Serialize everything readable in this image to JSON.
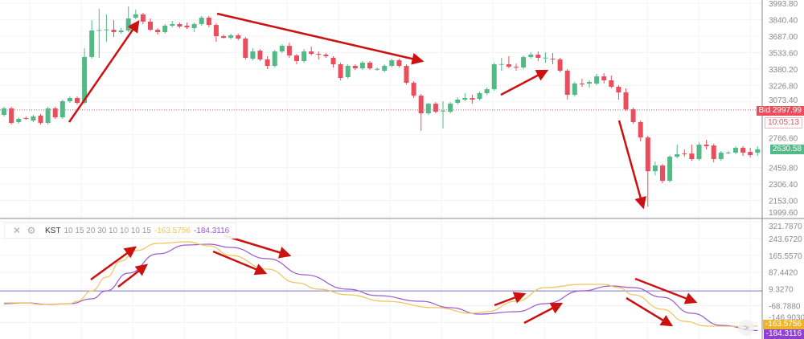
{
  "colors": {
    "up": "#53b987",
    "down": "#eb4d5c",
    "kst": "#f0c45a",
    "signal": "#9b59d0",
    "zero_line": "#7b72c4",
    "annotation": "#cc1111",
    "bid": "#eb4d5c"
  },
  "price_axis": {
    "labels": [
      "3993.80",
      "3840.40",
      "3687.00",
      "3533.60",
      "3380.20",
      "3226.80",
      "3073.40",
      "2766.60",
      "2459.80",
      "2306.40",
      "2153.00",
      "1999.60"
    ],
    "min": 1999.6,
    "max": 3993.8
  },
  "bid": {
    "label": "Bid",
    "price": "2997.99",
    "value": 2997.99,
    "time": "10:05:13"
  },
  "last_price": {
    "label": "2630.58",
    "value": 2630.58
  },
  "candles": [
    [
      2952,
      3027,
      2937,
      3012
    ],
    [
      3012,
      3027,
      2862,
      2877
    ],
    [
      2884,
      2929,
      2869,
      2914
    ],
    [
      2922,
      2937,
      2907,
      2920
    ],
    [
      2899,
      2952,
      2884,
      2937
    ],
    [
      2944,
      2959,
      2862,
      2877
    ],
    [
      2877,
      3027,
      2862,
      3012
    ],
    [
      3012,
      3027,
      2914,
      2929
    ],
    [
      2929,
      3094,
      2914,
      3079
    ],
    [
      3079,
      3124,
      3064,
      3109
    ],
    [
      3109,
      3124,
      3049,
      3064
    ],
    [
      3064,
      3574,
      3049,
      3492
    ],
    [
      3492,
      3836,
      3476,
      3739
    ],
    [
      3739,
      3941,
      3484,
      3744
    ],
    [
      3746,
      3889,
      3634,
      3749
    ],
    [
      3746,
      3836,
      3679,
      3724
    ],
    [
      3724,
      3761,
      3709,
      3739
    ],
    [
      3739,
      3964,
      3724,
      3852
    ],
    [
      3859,
      3934,
      3844,
      3889
    ],
    [
      3889,
      3904,
      3799,
      3822
    ],
    [
      3822,
      3851,
      3731,
      3746
    ],
    [
      3746,
      3761,
      3701,
      3724
    ],
    [
      3724,
      3799,
      3709,
      3784
    ],
    [
      3784,
      3829,
      3769,
      3799
    ],
    [
      3799,
      3814,
      3761,
      3776
    ],
    [
      3784,
      3814,
      3754,
      3769
    ],
    [
      3761,
      3814,
      3724,
      3799
    ],
    [
      3799,
      3874,
      3784,
      3859
    ],
    [
      3859,
      3874,
      3769,
      3791
    ],
    [
      3791,
      3806,
      3634,
      3686
    ],
    [
      3686,
      3701,
      3664,
      3671
    ],
    [
      3671,
      3709,
      3656,
      3694
    ],
    [
      3694,
      3709,
      3649,
      3664
    ],
    [
      3664,
      3679,
      3469,
      3484
    ],
    [
      3476,
      3574,
      3461,
      3544
    ],
    [
      3551,
      3566,
      3454,
      3469
    ],
    [
      3469,
      3499,
      3379,
      3409
    ],
    [
      3409,
      3559,
      3394,
      3544
    ],
    [
      3544,
      3611,
      3529,
      3596
    ],
    [
      3596,
      3626,
      3484,
      3506
    ],
    [
      3506,
      3521,
      3424,
      3454
    ],
    [
      3454,
      3566,
      3439,
      3544
    ],
    [
      3544,
      3589,
      3506,
      3521
    ],
    [
      3521,
      3544,
      3469,
      3519
    ],
    [
      3514,
      3529,
      3484,
      3499
    ],
    [
      3484,
      3499,
      3394,
      3424
    ],
    [
      3424,
      3439,
      3274,
      3296
    ],
    [
      3304,
      3424,
      3289,
      3409
    ],
    [
      3409,
      3424,
      3371,
      3386
    ],
    [
      3386,
      3454,
      3371,
      3439
    ],
    [
      3439,
      3454,
      3371,
      3386
    ],
    [
      3379,
      3394,
      3364,
      3381
    ],
    [
      3364,
      3424,
      3349,
      3409
    ],
    [
      3409,
      3476,
      3394,
      3461
    ],
    [
      3461,
      3476,
      3394,
      3409
    ],
    [
      3409,
      3424,
      3236,
      3251
    ],
    [
      3251,
      3266,
      3109,
      3131
    ],
    [
      3131,
      3146,
      2802,
      2966
    ],
    [
      2966,
      3064,
      2952,
      3056
    ],
    [
      3056,
      3071,
      2966,
      2981
    ],
    [
      2989,
      3079,
      2824,
      2991
    ],
    [
      2981,
      3071,
      2966,
      3056
    ],
    [
      3064,
      3116,
      3049,
      3094
    ],
    [
      3094,
      3154,
      3079,
      3109
    ],
    [
      3109,
      3139,
      3056,
      3094
    ],
    [
      3101,
      3169,
      3086,
      3154
    ],
    [
      3154,
      3206,
      3139,
      3191
    ],
    [
      3191,
      3439,
      3176,
      3424
    ],
    [
      3424,
      3484,
      3364,
      3426
    ],
    [
      3424,
      3499,
      3386,
      3401
    ],
    [
      3401,
      3431,
      3364,
      3399
    ],
    [
      3394,
      3506,
      3379,
      3491
    ],
    [
      3491,
      3536,
      3476,
      3514
    ],
    [
      3514,
      3544,
      3454,
      3484
    ],
    [
      3484,
      3536,
      3439,
      3486
    ],
    [
      3476,
      3529,
      3424,
      3469
    ],
    [
      3469,
      3484,
      3349,
      3364
    ],
    [
      3364,
      3379,
      3094,
      3139
    ],
    [
      3139,
      3259,
      3124,
      3244
    ],
    [
      3244,
      3289,
      3214,
      3236
    ],
    [
      3244,
      3274,
      3206,
      3259
    ],
    [
      3244,
      3334,
      3229,
      3311
    ],
    [
      3311,
      3341,
      3244,
      3274
    ],
    [
      3274,
      3319,
      3199,
      3214
    ],
    [
      3214,
      3229,
      3094,
      3161
    ],
    [
      3161,
      3199,
      2989,
      3004
    ],
    [
      3004,
      3019,
      2869,
      2884
    ],
    [
      2884,
      2899,
      2704,
      2741
    ],
    [
      2741,
      2756,
      2096,
      2426
    ],
    [
      2426,
      2516,
      2386,
      2479
    ],
    [
      2479,
      2494,
      2314,
      2336
    ],
    [
      2336,
      2576,
      2321,
      2561
    ],
    [
      2561,
      2674,
      2546,
      2584
    ],
    [
      2591,
      2629,
      2561,
      2589
    ],
    [
      2591,
      2674,
      2524,
      2539
    ],
    [
      2539,
      2696,
      2524,
      2674
    ],
    [
      2674,
      2719,
      2629,
      2659
    ],
    [
      2666,
      2681,
      2509,
      2539
    ],
    [
      2539,
      2614,
      2524,
      2599
    ],
    [
      2599,
      2614,
      2584,
      2601
    ],
    [
      2599,
      2659,
      2584,
      2644
    ],
    [
      2644,
      2659,
      2569,
      2599
    ],
    [
      2606,
      2644,
      2554,
      2576
    ],
    [
      2599,
      2659,
      2569,
      2631
    ]
  ],
  "indicator": {
    "name": "KST",
    "params": "10 15 20 30 10 10 10 15",
    "kst_value": "-163.5756",
    "signal_value": "-184.3116",
    "close_icon": "close-icon",
    "settings_icon": "gear-icon",
    "axis_labels": [
      "321.7870",
      "243.6720",
      "165.5570",
      "87.4420",
      "9.3270",
      "-68.7880",
      "-146.9030"
    ],
    "axis_max": 321.787,
    "axis_step": 78.115,
    "zero_line": 0,
    "kst": [
      [
        0,
        -55.7
      ],
      [
        3,
        -55.7
      ],
      [
        5,
        -63.1
      ],
      [
        9,
        -59.4
      ],
      [
        10,
        -48.2
      ],
      [
        12,
        0.4
      ],
      [
        14,
        64.0
      ],
      [
        16,
        138.7
      ],
      [
        18,
        187.2
      ],
      [
        21,
        220.9
      ],
      [
        25,
        228.4
      ],
      [
        28,
        209.7
      ],
      [
        31,
        164.8
      ],
      [
        36,
        101.3
      ],
      [
        40,
        37.8
      ],
      [
        43,
        7.9
      ],
      [
        47,
        -18.3
      ],
      [
        52,
        -48.2
      ],
      [
        59,
        -78.1
      ],
      [
        64,
        -104.2
      ],
      [
        66,
        -96.7
      ],
      [
        70,
        -48.2
      ],
      [
        74,
        15.4
      ],
      [
        79,
        30.3
      ],
      [
        82,
        30.3
      ],
      [
        84,
        15.4
      ],
      [
        86,
        -18.3
      ],
      [
        90,
        -85.6
      ],
      [
        93,
        -141.6
      ],
      [
        96,
        -163.6
      ],
      [
        100,
        -165.0
      ],
      [
        103,
        -163.5756
      ]
    ],
    "signal": [
      [
        0,
        -59.4
      ],
      [
        3,
        -55.7
      ],
      [
        6,
        -63.1
      ],
      [
        9,
        -59.4
      ],
      [
        12,
        -37.0
      ],
      [
        14,
        0.4
      ],
      [
        17,
        82.6
      ],
      [
        21,
        172.3
      ],
      [
        25,
        213.4
      ],
      [
        28,
        217.2
      ],
      [
        31,
        202.2
      ],
      [
        36,
        149.9
      ],
      [
        41,
        75.1
      ],
      [
        47,
        7.9
      ],
      [
        51,
        -22.0
      ],
      [
        57,
        -48.2
      ],
      [
        61,
        -78.1
      ],
      [
        65,
        -108.0
      ],
      [
        70,
        -96.7
      ],
      [
        74,
        -59.4
      ],
      [
        79,
        0.4
      ],
      [
        83,
        22.8
      ],
      [
        86,
        15.4
      ],
      [
        90,
        -29.5
      ],
      [
        94,
        -104.2
      ],
      [
        98,
        -160.3
      ],
      [
        103,
        -184.3116
      ]
    ]
  },
  "nav": {
    "scroll_right_icon": "chevron-right-icon",
    "label": ">"
  }
}
